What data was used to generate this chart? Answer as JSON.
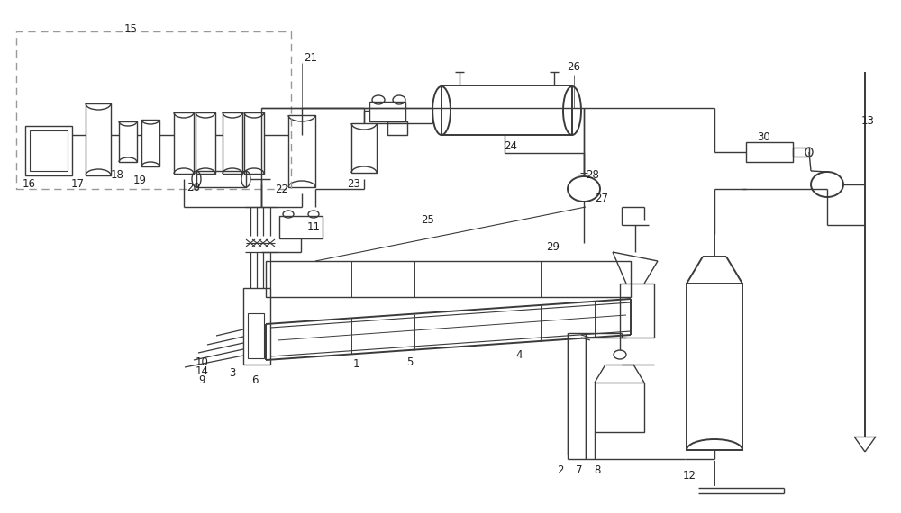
{
  "bg_color": "#ffffff",
  "line_color": "#3a3a3a",
  "label_color": "#222222",
  "dashed_color": "#999999"
}
